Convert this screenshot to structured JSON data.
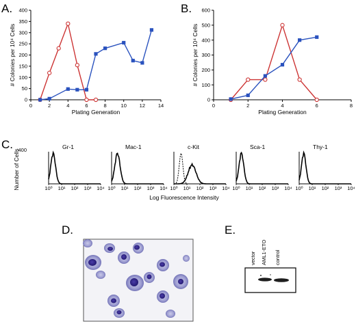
{
  "panels": {
    "A": {
      "letter": "A.",
      "chart_data": {
        "type": "line",
        "xlabel": "Plating Generation",
        "ylabel": "# Colonies per 10⁴ Cells",
        "xlim": [
          0,
          14
        ],
        "ylim": [
          0,
          400
        ],
        "xticks": [
          "0",
          "2",
          "4",
          "6",
          "8",
          "10",
          "12",
          "14"
        ],
        "yticks": [
          "0",
          "50",
          "100",
          "150",
          "200",
          "250",
          "300",
          "350",
          "400"
        ],
        "series": [
          {
            "color": "#cc3333",
            "marker": "circle-open",
            "x": [
              1,
              2,
              3,
              4,
              5,
              6,
              7
            ],
            "y": [
              0,
              120,
              230,
              340,
              155,
              0,
              0
            ]
          },
          {
            "color": "#2a52be",
            "marker": "square-filled",
            "x": [
              1,
              2,
              4,
              5,
              6,
              7,
              8,
              10,
              11,
              12,
              13
            ],
            "y": [
              0,
              5,
              48,
              45,
              45,
              205,
              230,
              255,
              175,
              165,
              312
            ]
          }
        ]
      }
    },
    "B": {
      "letter": "B.",
      "chart_data": {
        "type": "line",
        "xlabel": "Plating Generation",
        "ylabel": "# Colonies per 10⁴ Cells",
        "xlim": [
          0,
          8
        ],
        "ylim": [
          0,
          600
        ],
        "xticks": [
          "0",
          "2",
          "4",
          "6",
          "8"
        ],
        "yticks": [
          "0",
          "100",
          "200",
          "300",
          "400",
          "500",
          "600"
        ],
        "series": [
          {
            "color": "#cc3333",
            "marker": "circle-open",
            "x": [
              1,
              2,
              3,
              4,
              5,
              6
            ],
            "y": [
              0,
              135,
              135,
              500,
              135,
              0
            ]
          },
          {
            "color": "#2a52be",
            "marker": "square-filled",
            "x": [
              1,
              2,
              3,
              4,
              5,
              6
            ],
            "y": [
              5,
              30,
              160,
              235,
              400,
              420
            ]
          }
        ]
      }
    },
    "C": {
      "letter": "C.",
      "ylabel": "Number of Cells",
      "ymax_label": "400",
      "xlabel": "Log Fluorescence Intensity",
      "decade_labels": [
        "10⁰",
        "10¹",
        "10²",
        "10³",
        "10⁴"
      ],
      "histograms": [
        {
          "label": "Gr-1",
          "peak_decade": 0.35,
          "width": 0.18,
          "dashed_control": false
        },
        {
          "label": "Mac-1",
          "peak_decade": 0.45,
          "width": 0.2,
          "dashed_control": false
        },
        {
          "label": "c-Kit",
          "peak_decade": 1.4,
          "width": 0.3,
          "dashed_control": true,
          "control_peak_decade": 0.55
        },
        {
          "label": "Sca-1",
          "peak_decade": 0.4,
          "width": 0.18,
          "dashed_control": false
        },
        {
          "label": "Thy-1",
          "peak_decade": 0.35,
          "width": 0.17,
          "dashed_control": false
        }
      ]
    },
    "D": {
      "letter": "D."
    },
    "E": {
      "letter": "E.",
      "lanes": [
        "vector",
        "AML1-ETO",
        "control"
      ]
    }
  }
}
